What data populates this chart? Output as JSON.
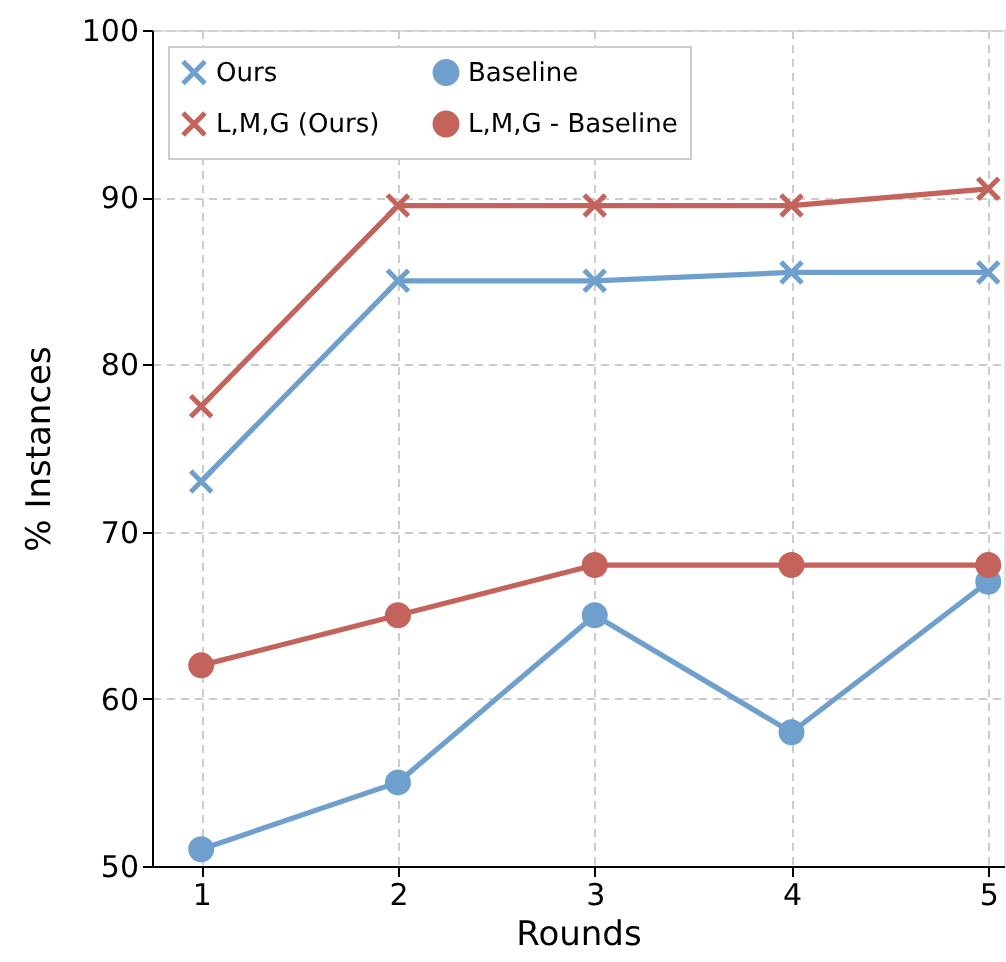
{
  "chart_data": {
    "type": "line",
    "xlabel": "Rounds",
    "ylabel": "% Instances",
    "x": [
      1,
      2,
      3,
      4,
      5
    ],
    "xlim": [
      0.75,
      5.08
    ],
    "xticks": [
      1,
      2,
      3,
      4,
      5
    ],
    "ylim": [
      50,
      100
    ],
    "yticks": [
      50,
      60,
      70,
      80,
      90,
      100
    ],
    "grid": true,
    "legend": "top",
    "line_style": "solid",
    "series": [
      {
        "name": "Ours",
        "color": "#6f9fcc",
        "marker": "cross",
        "values": [
          73,
          85,
          85,
          85.5,
          85.5
        ]
      },
      {
        "name": "L,M,G (Ours)",
        "color": "#c4625c",
        "marker": "cross",
        "values": [
          77.5,
          89.5,
          89.5,
          89.5,
          90.5
        ]
      },
      {
        "name": "Baseline",
        "color": "#6f9fcc",
        "marker": "circle",
        "values": [
          51,
          55,
          65,
          58,
          67
        ]
      },
      {
        "name": "L,M,G - Baseline",
        "color": "#c4625c",
        "marker": "circle",
        "values": [
          62,
          65,
          68,
          68,
          68
        ]
      }
    ]
  }
}
